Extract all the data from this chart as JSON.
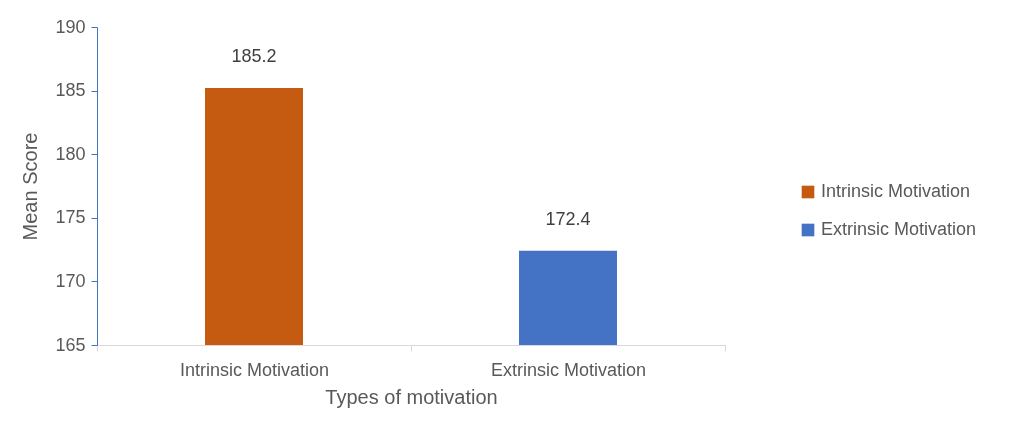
{
  "chart_data": {
    "type": "bar",
    "xlabel": "Types of motivation",
    "ylabel": "Mean Score",
    "categories": [
      "Intrinsic Motivation",
      "Extrinsic Motivation"
    ],
    "series": [
      {
        "name": "Intrinsic Motivation",
        "color": "#c55a11",
        "values": [
          185.2,
          null
        ]
      },
      {
        "name": "Extrinsic Motivation",
        "color": "#4472c4",
        "values": [
          null,
          172.4
        ]
      }
    ],
    "ylim": [
      165,
      190
    ],
    "yticks": [
      165,
      170,
      175,
      180,
      185,
      190
    ],
    "grid": false,
    "legend": "right",
    "data_labels": true
  }
}
